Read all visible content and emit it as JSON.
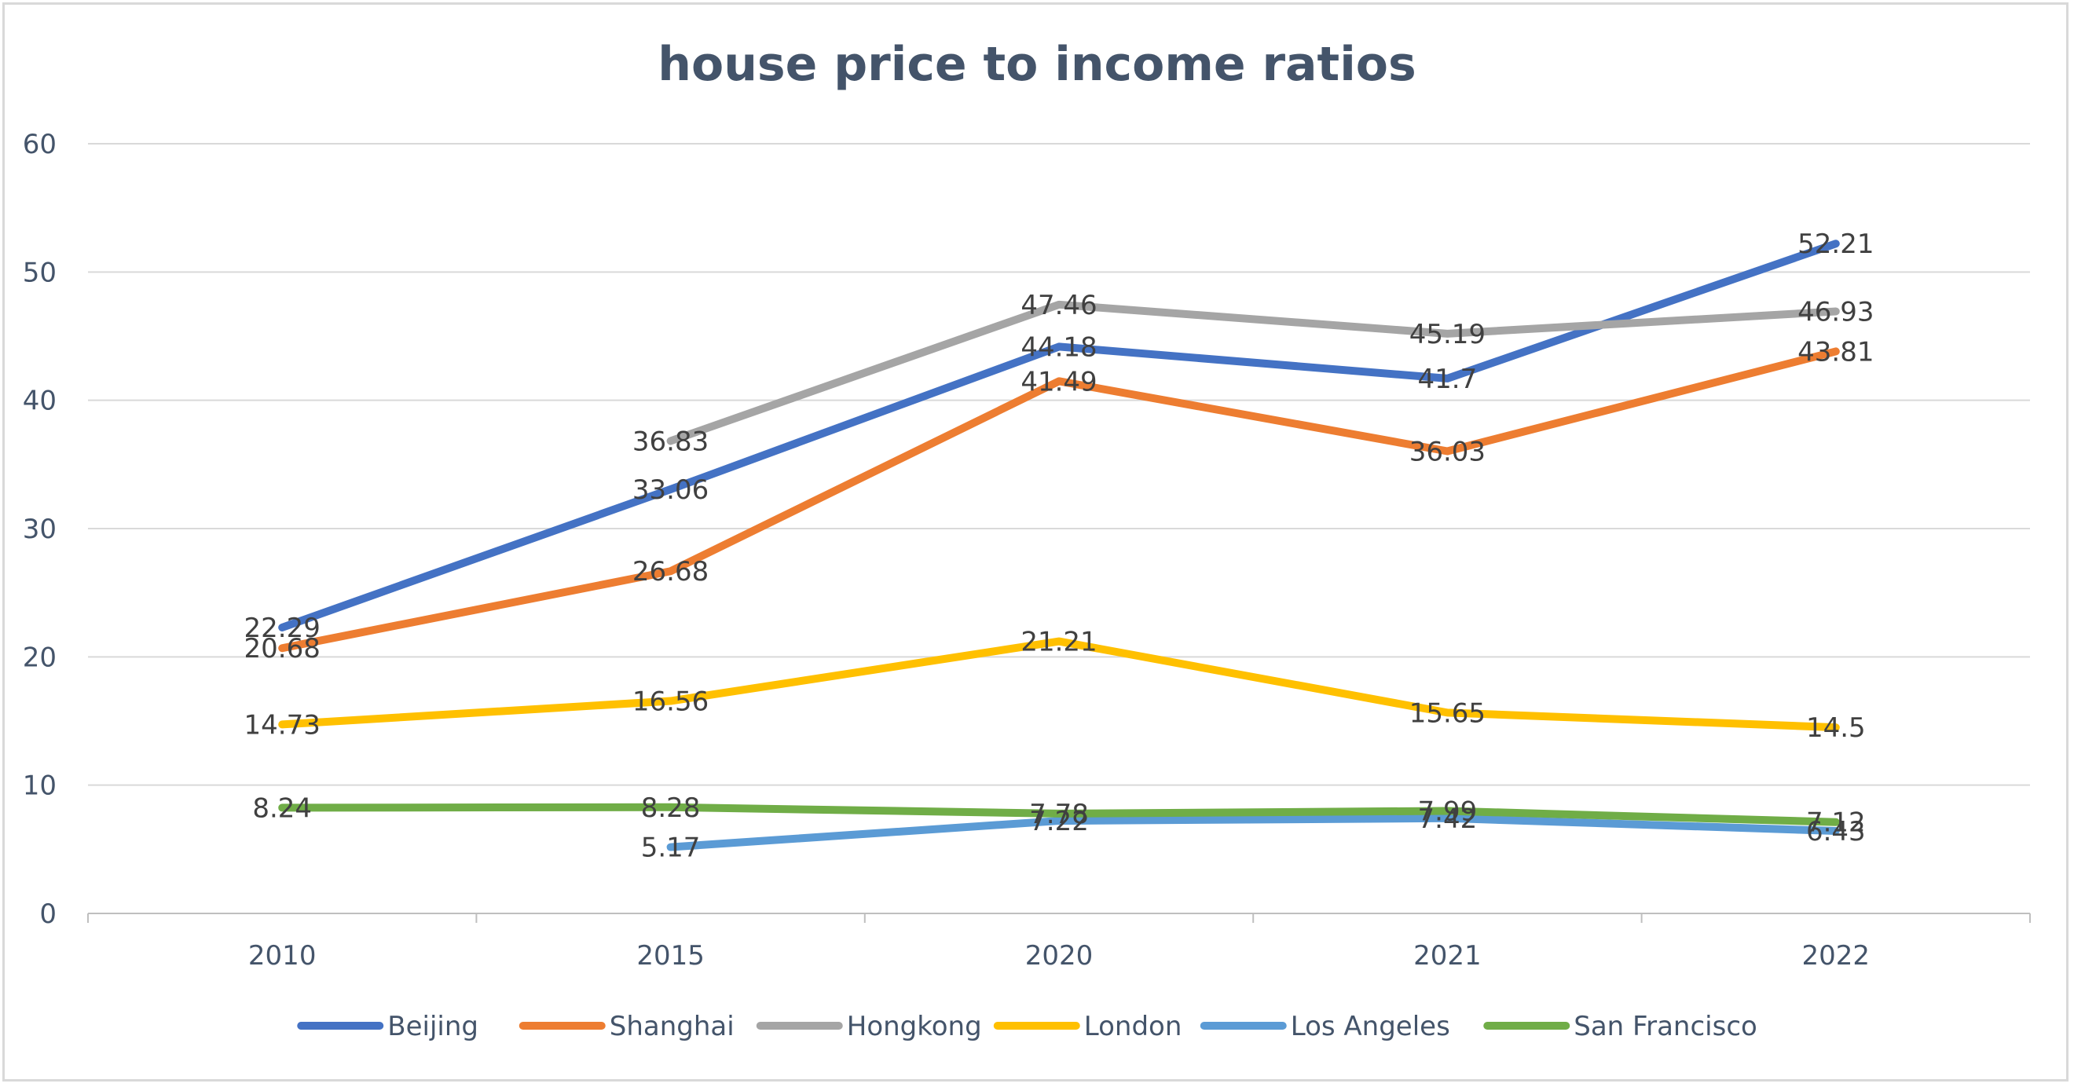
{
  "chart_data": {
    "type": "line",
    "title": "house price to income ratios",
    "categories": [
      "2010",
      "2015",
      "2020",
      "2021",
      "2022"
    ],
    "ylim": [
      0,
      60
    ],
    "yticks": [
      0,
      10,
      20,
      30,
      40,
      50,
      60
    ],
    "grid": true,
    "legend_position": "bottom",
    "series": [
      {
        "name": "Beijing",
        "color": "#4472c4",
        "values": [
          22.29,
          33.06,
          44.18,
          41.7,
          52.21
        ]
      },
      {
        "name": "Shanghai",
        "color": "#ed7d31",
        "values": [
          20.68,
          26.68,
          41.49,
          36.03,
          43.81
        ]
      },
      {
        "name": "Hongkong",
        "color": "#a5a5a5",
        "values": [
          null,
          36.83,
          47.46,
          45.19,
          46.93
        ]
      },
      {
        "name": "London",
        "color": "#ffc000",
        "values": [
          14.73,
          16.56,
          21.21,
          15.65,
          14.5
        ]
      },
      {
        "name": "Los Angeles",
        "color": "#5b9bd5",
        "values": [
          null,
          5.17,
          7.22,
          7.42,
          6.43
        ]
      },
      {
        "name": "San Francisco",
        "color": "#70ad47",
        "values": [
          8.24,
          8.28,
          7.78,
          7.99,
          7.12
        ]
      }
    ]
  }
}
